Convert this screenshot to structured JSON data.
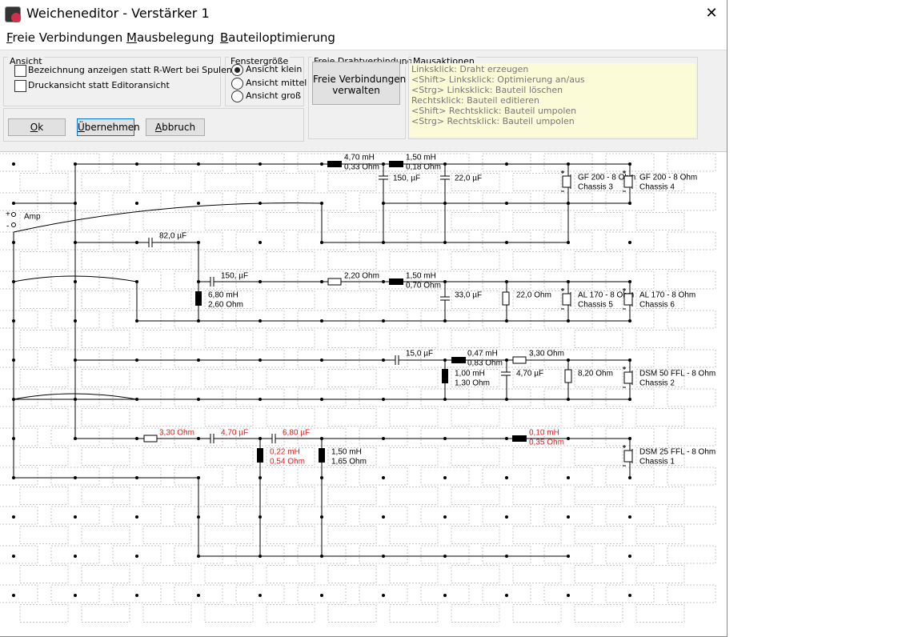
{
  "window": {
    "title": "Weicheneditor - Verstärker 1",
    "close": "✕"
  },
  "menu": [
    "Freie Verbindungen",
    "Mausbelegung",
    "Bauteiloptimierung"
  ],
  "ansicht": {
    "title": "Ansicht",
    "options": [
      "Bezeichnung anzeigen statt R-Wert bei Spulen",
      "Druckansicht statt Editoransicht"
    ]
  },
  "fenstergroesse": {
    "title": "Fenstergröße",
    "options": [
      {
        "label": "Ansicht klein",
        "checked": true
      },
      {
        "label": "Ansicht mittel",
        "checked": false
      },
      {
        "label": "Ansicht groß",
        "checked": false
      }
    ]
  },
  "draht": {
    "title": "Freie Drahtverbindunge",
    "button": [
      "Freie Verbindungen",
      "verwalten"
    ]
  },
  "mausaktionen": {
    "title": "Mausaktionen",
    "lines": [
      "Linksklick: Draht erzeugen",
      "<Shift> Linksklick: Optimierung an/aus",
      "<Strg> Linksklick: Bauteil löschen",
      "Rechtsklick: Bauteil editieren",
      "<Shift> Rechtsklick: Bauteil umpolen",
      "<Strg> Rechtsklick: Bauteil umpolen"
    ]
  },
  "buttons": [
    "Ok",
    "Übernehmen",
    "Abbruch"
  ],
  "schematic": {
    "amp": "Amp",
    "plus": "+",
    "minus": "-",
    "components": [
      {
        "lines": [
          "4,70 mH",
          "0,33 Ohm"
        ]
      },
      {
        "lines": [
          "1,50 mH",
          "0,18 Ohm"
        ]
      },
      {
        "lines": [
          "150, µF"
        ]
      },
      {
        "lines": [
          "22,0 µF"
        ]
      },
      {
        "lines": [
          "GF 200 - 8 Ohm",
          "Chassis 3"
        ]
      },
      {
        "lines": [
          "GF 200 - 8 Ohm",
          "Chassis 4"
        ]
      },
      {
        "lines": [
          "82,0 µF"
        ]
      },
      {
        "lines": [
          "150, µF"
        ]
      },
      {
        "lines": [
          "2,20 Ohm"
        ]
      },
      {
        "lines": [
          "1,50 mH",
          "0,70 Ohm"
        ]
      },
      {
        "lines": [
          "6,80 mH",
          "2,60 Ohm"
        ]
      },
      {
        "lines": [
          "33,0 µF"
        ]
      },
      {
        "lines": [
          "22,0 Ohm"
        ]
      },
      {
        "lines": [
          "AL 170 - 8 Ohm",
          "Chassis 5"
        ]
      },
      {
        "lines": [
          "AL 170 - 8 Ohm",
          "Chassis 6"
        ]
      },
      {
        "lines": [
          "15,0 µF"
        ]
      },
      {
        "lines": [
          "0,47 mH",
          "0,83 Ohm"
        ]
      },
      {
        "lines": [
          "3,30 Ohm"
        ]
      },
      {
        "lines": [
          "1,00 mH",
          "1,30 Ohm"
        ]
      },
      {
        "lines": [
          "4,70 µF"
        ]
      },
      {
        "lines": [
          "8,20 Ohm"
        ]
      },
      {
        "lines": [
          "DSM 50 FFL - 8 Ohm",
          "Chassis 2"
        ]
      },
      {
        "lines": [
          "3,30 Ohm"
        ],
        "color": "#e02020"
      },
      {
        "lines": [
          "4,70 µF"
        ],
        "color": "#e02020"
      },
      {
        "lines": [
          "6,80 µF"
        ],
        "color": "#e02020"
      },
      {
        "lines": [
          "0,10 mH",
          "0,35 Ohm"
        ],
        "color": "#e02020"
      },
      {
        "lines": [
          "0,22 mH",
          "0,54 Ohm"
        ],
        "color": "#e02020"
      },
      {
        "lines": [
          "1,50 mH",
          "1,65 Ohm"
        ]
      },
      {
        "lines": [
          "DSM 25 FFL - 8 Ohm",
          "Chassis 1"
        ]
      }
    ]
  }
}
